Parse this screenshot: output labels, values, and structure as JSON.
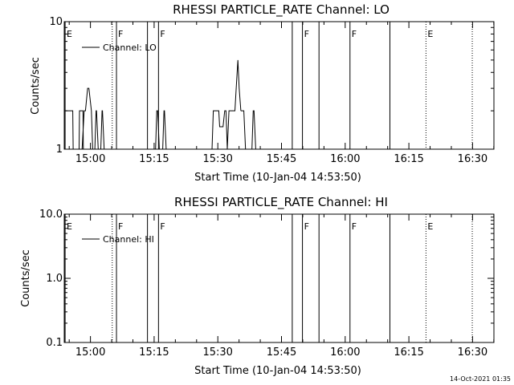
{
  "footer": {
    "timestamp": "14-Oct-2021 01:35"
  },
  "chart_data": [
    {
      "type": "line",
      "title": "RHESSI PARTICLE_RATE Channel: LO",
      "xlabel": "Start Time (10-Jan-04 14:53:50)",
      "ylabel": "Counts/sec",
      "x_unit": "minutes since 14:53:50",
      "xlim": [
        0,
        101.2
      ],
      "ylim": [
        1,
        10
      ],
      "yscale": "log",
      "xticks": [
        {
          "x": 6.17,
          "label": "15:00"
        },
        {
          "x": 21.17,
          "label": "15:15"
        },
        {
          "x": 36.17,
          "label": "15:30"
        },
        {
          "x": 51.17,
          "label": "15:45"
        },
        {
          "x": 66.17,
          "label": "16:00"
        },
        {
          "x": 81.17,
          "label": "16:15"
        },
        {
          "x": 96.17,
          "label": "16:30"
        }
      ],
      "yticks": [
        {
          "y": 1,
          "label": "1"
        },
        {
          "y": 10,
          "label": "10"
        }
      ],
      "grid": false,
      "legend_position": "top-left",
      "legend": "Channel: LO",
      "markers": [
        {
          "x": 0.2,
          "style": "solid",
          "label": "E"
        },
        {
          "x": 11.3,
          "style": "dotted",
          "label": ""
        },
        {
          "x": 12.3,
          "style": "solid",
          "label": "F"
        },
        {
          "x": 19.6,
          "style": "solid",
          "label": ""
        },
        {
          "x": 22.2,
          "style": "solid",
          "label": "F"
        },
        {
          "x": 53.7,
          "style": "solid",
          "label": ""
        },
        {
          "x": 56.1,
          "style": "solid",
          "label": "F"
        },
        {
          "x": 60.0,
          "style": "solid",
          "label": ""
        },
        {
          "x": 67.3,
          "style": "solid",
          "label": "F"
        },
        {
          "x": 76.7,
          "style": "solid",
          "label": ""
        },
        {
          "x": 85.2,
          "style": "dotted",
          "label": "E"
        },
        {
          "x": 96.1,
          "style": "dotted",
          "label": ""
        }
      ],
      "series": [
        {
          "name": "Channel: LO",
          "segments": [
            {
              "x": [
                0.3,
                0.9,
                1.0,
                2.0,
                2.1,
                2.4
              ],
              "y": [
                2,
                2,
                2,
                2,
                1,
                1
              ]
            },
            {
              "x": [
                3.0,
                3.5,
                3.6,
                4.4,
                4.5,
                5.0
              ],
              "y": [
                1,
                1,
                2,
                2,
                1,
                1
              ]
            },
            {
              "x": [
                4.2,
                4.7,
                5.0,
                5.5,
                5.8,
                6.4,
                6.7,
                7.2
              ],
              "y": [
                1,
                2,
                2,
                3,
                3,
                2,
                1,
                1
              ]
            },
            {
              "x": [
                7.2,
                7.5,
                7.6,
                8.0
              ],
              "y": [
                1,
                2,
                2,
                1
              ]
            },
            {
              "x": [
                8.6,
                8.9,
                9.0,
                9.4
              ],
              "y": [
                1,
                2,
                2,
                1
              ]
            },
            {
              "x": [
                21.5,
                21.8,
                22.0,
                22.4
              ],
              "y": [
                1,
                2,
                2,
                1
              ]
            },
            {
              "x": [
                23.2,
                23.5,
                23.6,
                24.0
              ],
              "y": [
                1,
                2,
                2,
                1
              ]
            },
            {
              "x": [
                34.8,
                35.1,
                36.4,
                36.6,
                37.4,
                37.8,
                38.1,
                38.4
              ],
              "y": [
                1,
                2,
                2,
                1.5,
                1.5,
                2,
                2,
                1
              ]
            },
            {
              "x": [
                38.4,
                38.8,
                40.2,
                40.5,
                40.9,
                41.2,
                41.6
              ],
              "y": [
                1,
                2,
                2,
                3,
                5,
                3,
                2
              ]
            },
            {
              "x": [
                41.6,
                41.9,
                42.3,
                42.7,
                43.0
              ],
              "y": [
                2,
                2,
                2,
                1,
                1
              ]
            },
            {
              "x": [
                44.2,
                44.5,
                44.7,
                45.1
              ],
              "y": [
                1,
                2,
                2,
                1
              ]
            }
          ]
        }
      ]
    },
    {
      "type": "line",
      "title": "RHESSI PARTICLE_RATE Channel: HI",
      "xlabel": "Start Time (10-Jan-04 14:53:50)",
      "ylabel": "Counts/sec",
      "x_unit": "minutes since 14:53:50",
      "xlim": [
        0,
        101.2
      ],
      "ylim": [
        0.1,
        10
      ],
      "yscale": "log",
      "xticks": [
        {
          "x": 6.17,
          "label": "15:00"
        },
        {
          "x": 21.17,
          "label": "15:15"
        },
        {
          "x": 36.17,
          "label": "15:30"
        },
        {
          "x": 51.17,
          "label": "15:45"
        },
        {
          "x": 66.17,
          "label": "16:00"
        },
        {
          "x": 81.17,
          "label": "16:15"
        },
        {
          "x": 96.17,
          "label": "16:30"
        }
      ],
      "yticks": [
        {
          "y": 0.1,
          "label": "0.1"
        },
        {
          "y": 1,
          "label": "1.0"
        },
        {
          "y": 10,
          "label": "10.0"
        }
      ],
      "grid": false,
      "legend_position": "top-left",
      "legend": "Channel: HI",
      "markers": [
        {
          "x": 0.2,
          "style": "solid",
          "label": "E"
        },
        {
          "x": 11.3,
          "style": "dotted",
          "label": ""
        },
        {
          "x": 12.3,
          "style": "solid",
          "label": "F"
        },
        {
          "x": 19.6,
          "style": "solid",
          "label": ""
        },
        {
          "x": 22.2,
          "style": "solid",
          "label": "F"
        },
        {
          "x": 53.7,
          "style": "solid",
          "label": ""
        },
        {
          "x": 56.1,
          "style": "solid",
          "label": "F"
        },
        {
          "x": 60.0,
          "style": "solid",
          "label": ""
        },
        {
          "x": 67.3,
          "style": "solid",
          "label": "F"
        },
        {
          "x": 76.7,
          "style": "solid",
          "label": ""
        },
        {
          "x": 85.2,
          "style": "dotted",
          "label": "E"
        },
        {
          "x": 96.1,
          "style": "dotted",
          "label": ""
        }
      ],
      "series": [
        {
          "name": "Channel: HI",
          "segments": []
        }
      ]
    }
  ]
}
